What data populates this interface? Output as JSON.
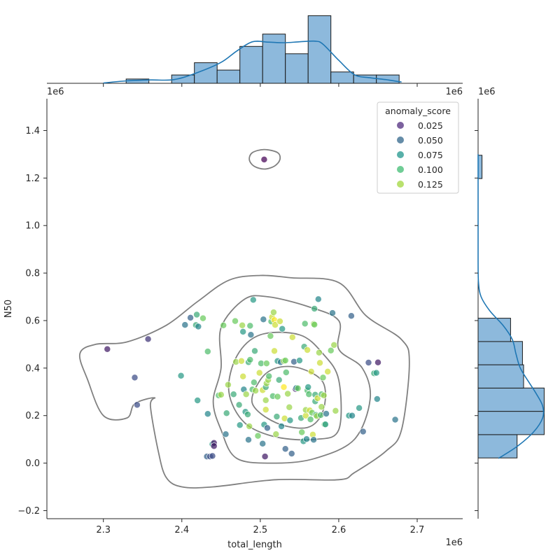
{
  "chart_data": {
    "type": "scatter",
    "subtype": "jointplot",
    "x_label": "total_length",
    "y_label": "N50",
    "x_offset_label": "1e6",
    "y_offset_label": "1e6",
    "x_range": [
      2.228,
      2.758
    ],
    "y_range": [
      -0.234,
      1.534
    ],
    "x_ticks": [
      {
        "value": 2.3,
        "label": "2.3"
      },
      {
        "value": 2.4,
        "label": "2.4"
      },
      {
        "value": 2.5,
        "label": "2.5"
      },
      {
        "value": 2.6,
        "label": "2.6"
      },
      {
        "value": 2.7,
        "label": "2.7"
      }
    ],
    "y_ticks": [
      {
        "value": -0.2,
        "label": "−0.2"
      },
      {
        "value": 0.0,
        "label": "0.0"
      },
      {
        "value": 0.2,
        "label": "0.2"
      },
      {
        "value": 0.4,
        "label": "0.4"
      },
      {
        "value": 0.6,
        "label": "0.6"
      },
      {
        "value": 0.8,
        "label": "0.8"
      },
      {
        "value": 1.0,
        "label": "1.0"
      },
      {
        "value": 1.2,
        "label": "1.2"
      },
      {
        "value": 1.4,
        "label": "1.4"
      }
    ],
    "hue_variable": "anomaly_score",
    "hue_range": [
      0.01,
      0.14
    ],
    "legend": {
      "title": "anomaly_score",
      "position": "top-right",
      "entries": [
        {
          "label": "0.025",
          "value": 0.025,
          "color": "#5b3a86"
        },
        {
          "label": "0.050",
          "value": 0.05,
          "color": "#3e6f92"
        },
        {
          "label": "0.075",
          "value": 0.075,
          "color": "#2e9c94"
        },
        {
          "label": "0.100",
          "value": 0.1,
          "color": "#4cc07c"
        },
        {
          "label": "0.125",
          "value": 0.125,
          "color": "#a7d94a"
        }
      ]
    },
    "colors": {
      "kde_contour": "#808080",
      "hist_fill": "#8db9dc",
      "hist_edge": "#1a1a1a",
      "kde_line": "#1f77b4",
      "axis": "#262626"
    },
    "points": [
      [
        2.505,
        1.278,
        0.01
      ],
      [
        2.305,
        0.48,
        0.02
      ],
      [
        2.34,
        0.36,
        0.04
      ],
      [
        2.343,
        0.245,
        0.04
      ],
      [
        2.357,
        0.522,
        0.03
      ],
      [
        2.399,
        0.368,
        0.08
      ],
      [
        2.404,
        0.582,
        0.06
      ],
      [
        2.411,
        0.612,
        0.05
      ],
      [
        2.418,
        0.581,
        0.09
      ],
      [
        2.419,
        0.625,
        0.09
      ],
      [
        2.421,
        0.575,
        0.07
      ],
      [
        2.42,
        0.264,
        0.08
      ],
      [
        2.427,
        0.61,
        0.11
      ],
      [
        2.433,
        0.47,
        0.1
      ],
      [
        2.433,
        0.207,
        0.07
      ],
      [
        2.432,
        0.028,
        0.05
      ],
      [
        2.436,
        0.028,
        0.04
      ],
      [
        2.439,
        0.03,
        0.04
      ],
      [
        2.439,
        0.08,
        0.08
      ],
      [
        2.441,
        0.085,
        0.02
      ],
      [
        2.441,
        0.072,
        0.02
      ],
      [
        2.447,
        0.285,
        0.1
      ],
      [
        2.45,
        0.288,
        0.12
      ],
      [
        2.453,
        0.58,
        0.11
      ],
      [
        2.456,
        0.122,
        0.06
      ],
      [
        2.457,
        0.21,
        0.09
      ],
      [
        2.459,
        0.33,
        0.12
      ],
      [
        2.466,
        0.29,
        0.09
      ],
      [
        2.468,
        0.598,
        0.11
      ],
      [
        2.469,
        0.426,
        0.12
      ],
      [
        2.473,
        0.245,
        0.09
      ],
      [
        2.474,
        0.16,
        0.08
      ],
      [
        2.476,
        0.43,
        0.13
      ],
      [
        2.477,
        0.58,
        0.12
      ],
      [
        2.478,
        0.365,
        0.13
      ],
      [
        2.478,
        0.553,
        0.08
      ],
      [
        2.479,
        0.31,
        0.07
      ],
      [
        2.481,
        0.216,
        0.08
      ],
      [
        2.482,
        0.29,
        0.12
      ],
      [
        2.484,
        0.205,
        0.09
      ],
      [
        2.485,
        0.425,
        0.09
      ],
      [
        2.485,
        0.098,
        0.06
      ],
      [
        2.486,
        0.155,
        0.12
      ],
      [
        2.487,
        0.435,
        0.1
      ],
      [
        2.487,
        0.578,
        0.1
      ],
      [
        2.488,
        0.54,
        0.06
      ],
      [
        2.49,
        0.31,
        0.1
      ],
      [
        2.491,
        0.687,
        0.08
      ],
      [
        2.492,
        0.34,
        0.1
      ],
      [
        2.493,
        0.472,
        0.09
      ],
      [
        2.494,
        0.305,
        0.12
      ],
      [
        2.497,
        0.115,
        0.11
      ],
      [
        2.499,
        0.38,
        0.13
      ],
      [
        2.501,
        0.42,
        0.1
      ],
      [
        2.503,
        0.082,
        0.06
      ],
      [
        2.503,
        0.307,
        0.13
      ],
      [
        2.504,
        0.605,
        0.06
      ],
      [
        2.505,
        0.162,
        0.08
      ],
      [
        2.506,
        0.028,
        0.02
      ],
      [
        2.507,
        0.265,
        0.12
      ],
      [
        2.507,
        0.32,
        0.09
      ],
      [
        2.507,
        0.225,
        0.13
      ],
      [
        2.508,
        0.42,
        0.11
      ],
      [
        2.508,
        0.336,
        0.12
      ],
      [
        2.509,
        0.148,
        0.05
      ],
      [
        2.51,
        0.35,
        0.12
      ],
      [
        2.511,
        0.366,
        0.1
      ],
      [
        2.513,
        0.535,
        0.11
      ],
      [
        2.514,
        0.596,
        0.1
      ],
      [
        2.515,
        0.615,
        0.13
      ],
      [
        2.516,
        0.282,
        0.1
      ],
      [
        2.517,
        0.635,
        0.12
      ],
      [
        2.518,
        0.472,
        0.13
      ],
      [
        2.518,
        0.602,
        0.14
      ],
      [
        2.519,
        0.582,
        0.13
      ],
      [
        2.52,
        0.122,
        0.12
      ],
      [
        2.521,
        0.196,
        0.09
      ],
      [
        2.522,
        0.43,
        0.08
      ],
      [
        2.522,
        0.28,
        0.11
      ],
      [
        2.524,
        0.35,
        0.09
      ],
      [
        2.525,
        0.597,
        0.13
      ],
      [
        2.526,
        0.425,
        0.06
      ],
      [
        2.527,
        0.155,
        0.07
      ],
      [
        2.528,
        0.565,
        0.08
      ],
      [
        2.53,
        0.43,
        0.12
      ],
      [
        2.53,
        0.32,
        0.14
      ],
      [
        2.531,
        0.188,
        0.13
      ],
      [
        2.532,
        0.06,
        0.05
      ],
      [
        2.532,
        0.432,
        0.11
      ],
      [
        2.533,
        0.382,
        0.1
      ],
      [
        2.535,
        0.292,
        0.12
      ],
      [
        2.537,
        0.235,
        0.12
      ],
      [
        2.538,
        0.18,
        0.08
      ],
      [
        2.54,
        0.04,
        0.05
      ],
      [
        2.541,
        0.53,
        0.13
      ],
      [
        2.543,
        0.427,
        0.05
      ],
      [
        2.545,
        0.312,
        0.02
      ],
      [
        2.546,
        0.316,
        0.07
      ],
      [
        2.548,
        0.315,
        0.11
      ],
      [
        2.55,
        0.432,
        0.08
      ],
      [
        2.552,
        0.19,
        0.09
      ],
      [
        2.553,
        0.13,
        0.11
      ],
      [
        2.555,
        0.092,
        0.08
      ],
      [
        2.556,
        0.49,
        0.09
      ],
      [
        2.557,
        0.587,
        0.1
      ],
      [
        2.558,
        0.2,
        0.13
      ],
      [
        2.558,
        0.224,
        0.12
      ],
      [
        2.559,
        0.101,
        0.07
      ],
      [
        2.56,
        0.306,
        0.1
      ],
      [
        2.56,
        0.476,
        0.13
      ],
      [
        2.561,
        0.32,
        0.08
      ],
      [
        2.562,
        0.29,
        0.1
      ],
      [
        2.563,
        0.222,
        0.13
      ],
      [
        2.564,
        0.184,
        0.1
      ],
      [
        2.565,
        0.385,
        0.13
      ],
      [
        2.566,
        0.212,
        0.11
      ],
      [
        2.567,
        0.12,
        0.13
      ],
      [
        2.568,
        0.098,
        0.06
      ],
      [
        2.568,
        0.586,
        0.12
      ],
      [
        2.569,
        0.65,
        0.09
      ],
      [
        2.569,
        0.583,
        0.11
      ],
      [
        2.57,
        0.26,
        0.09
      ],
      [
        2.57,
        0.288,
        0.09
      ],
      [
        2.571,
        0.203,
        0.09
      ],
      [
        2.572,
        0.198,
        0.12
      ],
      [
        2.573,
        0.273,
        0.13
      ],
      [
        2.574,
        0.69,
        0.07
      ],
      [
        2.575,
        0.465,
        0.12
      ],
      [
        2.576,
        0.422,
        0.13
      ],
      [
        2.577,
        0.202,
        0.1
      ],
      [
        2.578,
        0.29,
        0.1
      ],
      [
        2.578,
        0.237,
        0.12
      ],
      [
        2.58,
        0.36,
        0.11
      ],
      [
        2.581,
        0.285,
        0.12
      ],
      [
        2.582,
        0.163,
        0.11
      ],
      [
        2.583,
        0.163,
        0.08
      ],
      [
        2.584,
        0.208,
        0.06
      ],
      [
        2.586,
        0.385,
        0.13
      ],
      [
        2.59,
        0.474,
        0.11
      ],
      [
        2.592,
        0.632,
        0.06
      ],
      [
        2.594,
        0.497,
        0.12
      ],
      [
        2.596,
        0.22,
        0.12
      ],
      [
        2.613,
        0.2,
        0.08
      ],
      [
        2.616,
        0.62,
        0.05
      ],
      [
        2.617,
        0.2,
        0.07
      ],
      [
        2.626,
        0.232,
        0.08
      ],
      [
        2.631,
        0.133,
        0.05
      ],
      [
        2.638,
        0.423,
        0.04
      ],
      [
        2.645,
        0.378,
        0.09
      ],
      [
        2.648,
        0.38,
        0.08
      ],
      [
        2.649,
        0.27,
        0.07
      ],
      [
        2.65,
        0.424,
        0.02
      ],
      [
        2.672,
        0.183,
        0.06
      ]
    ],
    "kde_contours": [
      [
        [
          2.505,
          1.32
        ],
        [
          2.522,
          1.307
        ],
        [
          2.525,
          1.278
        ],
        [
          2.518,
          1.25
        ],
        [
          2.505,
          1.238
        ],
        [
          2.492,
          1.25
        ],
        [
          2.486,
          1.278
        ],
        [
          2.49,
          1.307
        ]
      ],
      [
        [
          2.5,
          0.79
        ],
        [
          2.54,
          0.78
        ],
        [
          2.6,
          0.76
        ],
        [
          2.635,
          0.62
        ],
        [
          2.68,
          0.52
        ],
        [
          2.69,
          0.42
        ],
        [
          2.68,
          0.14
        ],
        [
          2.66,
          0.05
        ],
        [
          2.62,
          -0.04
        ],
        [
          2.6,
          -0.07
        ],
        [
          2.52,
          -0.07
        ],
        [
          2.44,
          -0.1
        ],
        [
          2.4,
          -0.1
        ],
        [
          2.38,
          -0.06
        ],
        [
          2.37,
          0.05
        ],
        [
          2.36,
          0.24
        ],
        [
          2.365,
          0.275
        ],
        [
          2.34,
          0.25
        ],
        [
          2.33,
          0.19
        ],
        [
          2.3,
          0.2
        ],
        [
          2.28,
          0.35
        ],
        [
          2.27,
          0.46
        ],
        [
          2.29,
          0.5
        ],
        [
          2.33,
          0.51
        ],
        [
          2.38,
          0.58
        ],
        [
          2.42,
          0.68
        ],
        [
          2.46,
          0.77
        ]
      ],
      [
        [
          2.48,
          0.69
        ],
        [
          2.51,
          0.7
        ],
        [
          2.56,
          0.66
        ],
        [
          2.6,
          0.6
        ],
        [
          2.6,
          0.48
        ],
        [
          2.63,
          0.4
        ],
        [
          2.64,
          0.27
        ],
        [
          2.62,
          0.1
        ],
        [
          2.57,
          0.02
        ],
        [
          2.52,
          0.0
        ],
        [
          2.47,
          0.02
        ],
        [
          2.45,
          0.14
        ],
        [
          2.44,
          0.26
        ],
        [
          2.45,
          0.4
        ],
        [
          2.45,
          0.57
        ]
      ],
      [
        [
          2.5,
          0.54
        ],
        [
          2.55,
          0.54
        ],
        [
          2.58,
          0.46
        ],
        [
          2.6,
          0.35
        ],
        [
          2.6,
          0.14
        ],
        [
          2.57,
          0.1
        ],
        [
          2.52,
          0.11
        ],
        [
          2.48,
          0.17
        ],
        [
          2.46,
          0.3
        ],
        [
          2.47,
          0.45
        ]
      ],
      [
        [
          2.52,
          0.4
        ],
        [
          2.55,
          0.4
        ],
        [
          2.58,
          0.34
        ],
        [
          2.58,
          0.22
        ],
        [
          2.56,
          0.15
        ],
        [
          2.52,
          0.17
        ],
        [
          2.49,
          0.25
        ],
        [
          2.5,
          0.35
        ]
      ]
    ],
    "histogram_x": {
      "edges": [
        2.3,
        2.329,
        2.358,
        2.387,
        2.416,
        2.445,
        2.474,
        2.503,
        2.532,
        2.561,
        2.59,
        2.619,
        2.648,
        2.677
      ],
      "heights": [
        0,
        0.14,
        0,
        0.27,
        0.67,
        0.43,
        1.2,
        1.6,
        0.96,
        2.2,
        0.37,
        0.27,
        0.27
      ],
      "ymax": 2.3,
      "kde": [
        [
          2.3,
          0.01
        ],
        [
          2.33,
          0.08
        ],
        [
          2.36,
          0.11
        ],
        [
          2.39,
          0.12
        ],
        [
          2.42,
          0.35
        ],
        [
          2.45,
          0.68
        ],
        [
          2.47,
          1.05
        ],
        [
          2.49,
          1.35
        ],
        [
          2.51,
          1.34
        ],
        [
          2.53,
          1.32
        ],
        [
          2.55,
          1.35
        ],
        [
          2.57,
          1.37
        ],
        [
          2.58,
          1.27
        ],
        [
          2.6,
          0.75
        ],
        [
          2.62,
          0.28
        ],
        [
          2.64,
          0.18
        ],
        [
          2.66,
          0.12
        ],
        [
          2.68,
          0.04
        ]
      ]
    },
    "histogram_y": {
      "edges": [
        0.022,
        0.12,
        0.218,
        0.316,
        0.414,
        0.512,
        0.61,
        0.708,
        0.806,
        0.904,
        1.002,
        1.1,
        1.198,
        1.296
      ],
      "widths": [
        1.8,
        3.05,
        3.05,
        2.1,
        2.05,
        1.5,
        0,
        0,
        0,
        0,
        0,
        0,
        0.18
      ],
      "xmax": 3.2,
      "kde": [
        [
          0.02,
          0.94
        ],
        [
          0.07,
          1.8
        ],
        [
          0.13,
          2.55
        ],
        [
          0.19,
          2.98
        ],
        [
          0.24,
          2.98
        ],
        [
          0.29,
          2.7
        ],
        [
          0.34,
          2.35
        ],
        [
          0.4,
          1.95
        ],
        [
          0.46,
          1.75
        ],
        [
          0.52,
          1.58
        ],
        [
          0.58,
          1.15
        ],
        [
          0.64,
          0.55
        ],
        [
          0.7,
          0.14
        ],
        [
          0.76,
          0.02
        ],
        [
          0.85,
          0.0
        ],
        [
          1.0,
          0.0
        ],
        [
          1.2,
          0.0
        ],
        [
          1.3,
          0.0
        ]
      ]
    }
  }
}
